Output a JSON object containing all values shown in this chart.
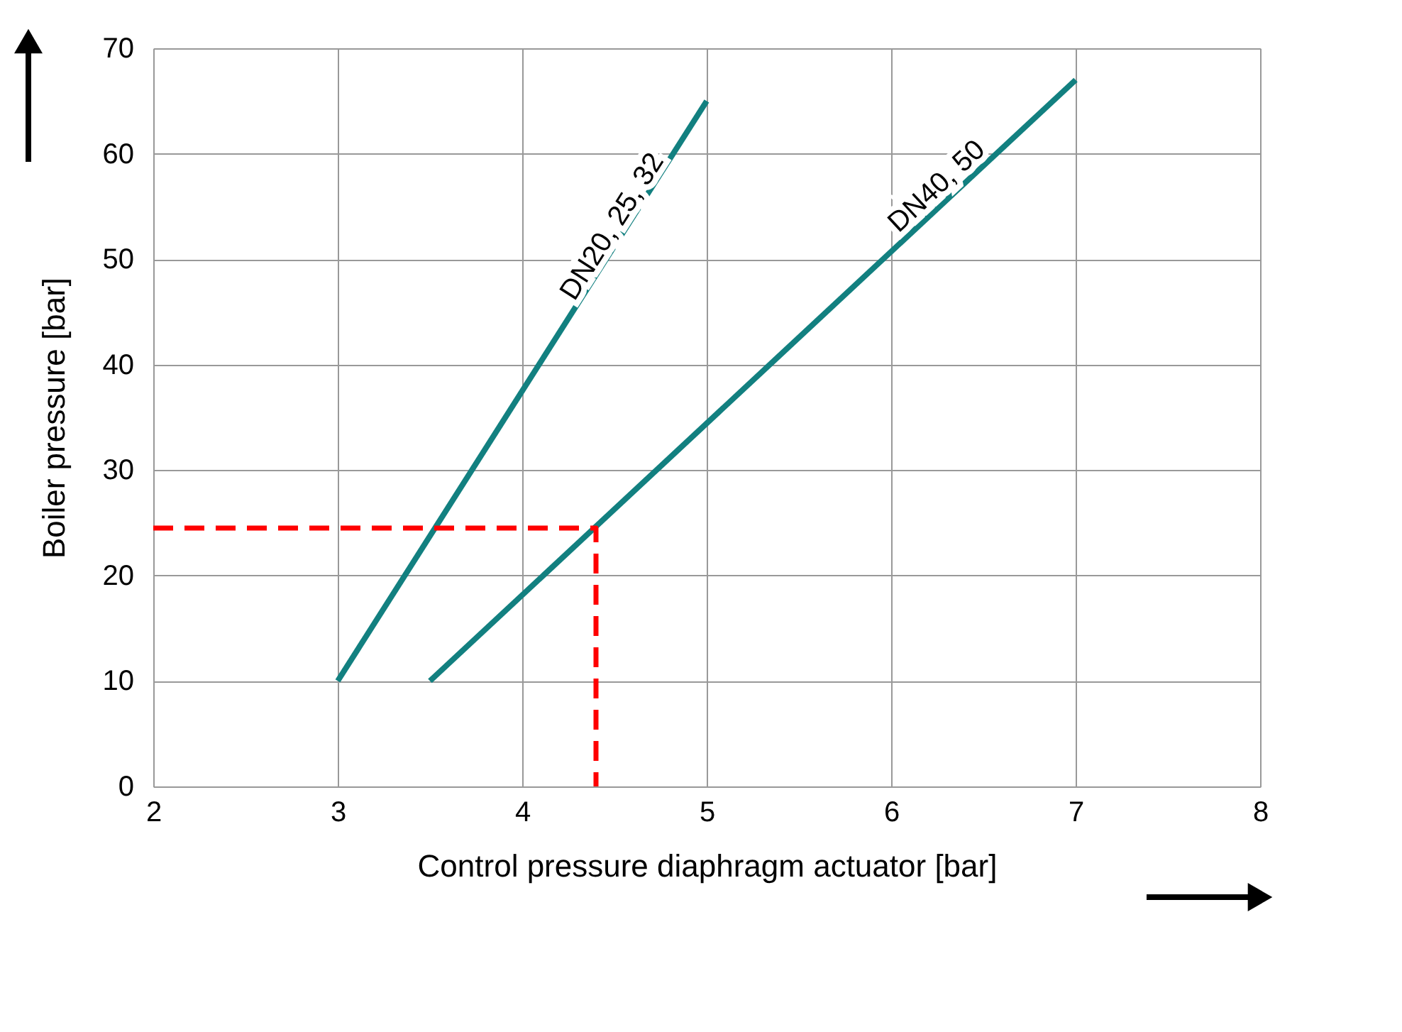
{
  "chart_data": {
    "type": "line",
    "xlabel": "Control pressure diaphragm actuator [bar]",
    "ylabel": "Boiler pressure [bar]",
    "xlim": [
      2,
      8
    ],
    "xticks": [
      2,
      3,
      4,
      5,
      6,
      7,
      8
    ],
    "ylim": [
      0,
      70
    ],
    "yticks": [
      0,
      10,
      20,
      30,
      40,
      50,
      60,
      70
    ],
    "grid": true,
    "legend": false,
    "marker": "none",
    "series": [
      {
        "name": "DN20, 25, 32",
        "color": "#128080",
        "x": [
          3,
          5
        ],
        "values": [
          10,
          65
        ],
        "line_style": "solid"
      },
      {
        "name": "DN40, 50",
        "color": "#128080",
        "x": [
          3.5,
          7
        ],
        "values": [
          10,
          67
        ],
        "line_style": "solid"
      },
      {
        "color": "#ff0000",
        "x": [
          2,
          4.4,
          4.4
        ],
        "values": [
          24.5,
          24.5,
          0
        ],
        "line_style": "dashed"
      }
    ]
  }
}
